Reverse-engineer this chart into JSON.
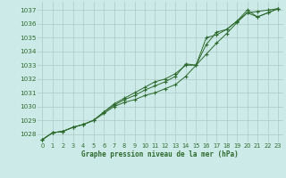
{
  "background_color": "#cceae7",
  "grid_color": "#b0c8c8",
  "line_color": "#2d6a2d",
  "title": "Graphe pression niveau de la mer (hPa)",
  "xlim": [
    -0.5,
    23.5
  ],
  "ylim": [
    1027.4,
    1037.6
  ],
  "yticks": [
    1028,
    1029,
    1030,
    1031,
    1032,
    1033,
    1034,
    1035,
    1036,
    1037
  ],
  "xticks": [
    0,
    1,
    2,
    3,
    4,
    5,
    6,
    7,
    8,
    9,
    10,
    11,
    12,
    13,
    14,
    15,
    16,
    17,
    18,
    19,
    20,
    21,
    22,
    23
  ],
  "series": [
    [
      1027.6,
      1028.1,
      1028.2,
      1028.5,
      1028.7,
      1029.0,
      1029.5,
      1030.0,
      1030.3,
      1030.5,
      1030.8,
      1031.0,
      1031.3,
      1031.6,
      1032.2,
      1033.0,
      1033.8,
      1034.6,
      1035.3,
      1036.1,
      1036.8,
      1036.9,
      1037.0,
      1037.1
    ],
    [
      1027.6,
      1028.1,
      1028.2,
      1028.5,
      1028.7,
      1029.0,
      1029.6,
      1030.1,
      1030.5,
      1030.8,
      1031.2,
      1031.5,
      1031.8,
      1032.2,
      1033.1,
      1033.0,
      1034.5,
      1035.4,
      1035.6,
      1036.2,
      1036.8,
      1036.5,
      1036.8,
      1037.1
    ],
    [
      1027.6,
      1028.1,
      1028.2,
      1028.5,
      1028.7,
      1029.0,
      1029.6,
      1030.2,
      1030.6,
      1031.0,
      1031.4,
      1031.8,
      1032.0,
      1032.4,
      1033.0,
      1033.0,
      1035.0,
      1035.2,
      1035.6,
      1036.2,
      1037.0,
      1036.5,
      1036.8,
      1037.1
    ]
  ]
}
